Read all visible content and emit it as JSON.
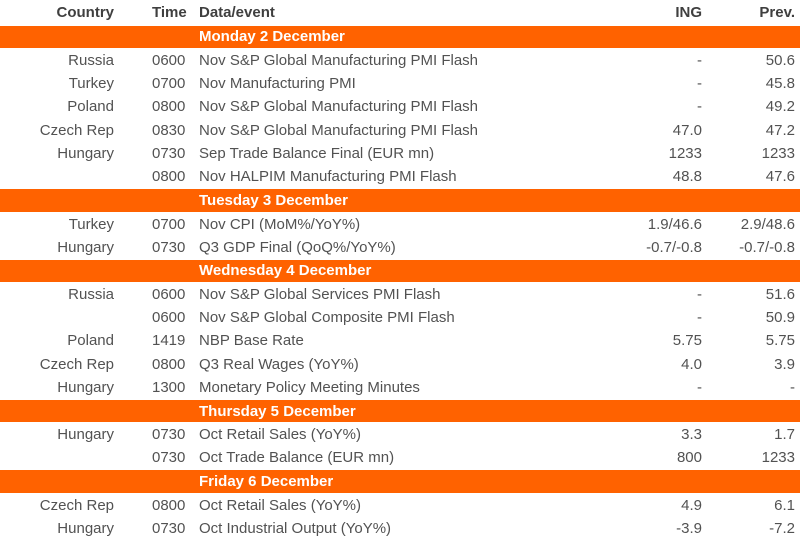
{
  "table": {
    "colors": {
      "accent_orange": "#FF6200",
      "header_text": "#3F3F3F",
      "body_text": "#525252",
      "section_text": "#FFFFFF"
    },
    "headers": {
      "country": "Country",
      "time": "Time",
      "event": "Data/event",
      "ing": "ING",
      "prev": "Prev."
    },
    "sections": [
      {
        "title": "Monday 2 December",
        "rows": [
          {
            "country": "Russia",
            "time": "0600",
            "event": "Nov S&P Global Manufacturing PMI Flash",
            "ing": "-",
            "prev": "50.6"
          },
          {
            "country": "Turkey",
            "time": "0700",
            "event": "Nov Manufacturing PMI",
            "ing": "-",
            "prev": "45.8"
          },
          {
            "country": "Poland",
            "time": "0800",
            "event": "Nov S&P Global Manufacturing PMI Flash",
            "ing": "-",
            "prev": "49.2"
          },
          {
            "country": "Czech Rep",
            "time": "0830",
            "event": "Nov S&P Global Manufacturing PMI Flash",
            "ing": "47.0",
            "prev": "47.2"
          },
          {
            "country": "Hungary",
            "time": "0730",
            "event": "Sep Trade Balance Final (EUR mn)",
            "ing": "1233",
            "prev": "1233"
          },
          {
            "country": "",
            "time": "0800",
            "event": "Nov HALPIM Manufacturing PMI Flash",
            "ing": "48.8",
            "prev": "47.6"
          }
        ]
      },
      {
        "title": "Tuesday 3 December",
        "rows": [
          {
            "country": "Turkey",
            "time": "0700",
            "event": "Nov CPI (MoM%/YoY%)",
            "ing": "1.9/46.6",
            "prev": "2.9/48.6"
          },
          {
            "country": "Hungary",
            "time": "0730",
            "event": "Q3 GDP Final (QoQ%/YoY%)",
            "ing": "-0.7/-0.8",
            "prev": "-0.7/-0.8"
          }
        ]
      },
      {
        "title": "Wednesday 4 December",
        "rows": [
          {
            "country": "Russia",
            "time": "0600",
            "event": "Nov S&P Global Services PMI Flash",
            "ing": "-",
            "prev": "51.6"
          },
          {
            "country": "",
            "time": "0600",
            "event": "Nov S&P Global Composite PMI Flash",
            "ing": "-",
            "prev": "50.9"
          },
          {
            "country": "Poland",
            "time": "1419",
            "event": "NBP Base Rate",
            "ing": "5.75",
            "prev": "5.75"
          },
          {
            "country": "Czech Rep",
            "time": "0800",
            "event": "Q3 Real Wages (YoY%)",
            "ing": "4.0",
            "prev": "3.9"
          },
          {
            "country": "Hungary",
            "time": "1300",
            "event": "Monetary Policy Meeting Minutes",
            "ing": "-",
            "prev": "-"
          }
        ]
      },
      {
        "title": "Thursday 5 December",
        "rows": [
          {
            "country": "Hungary",
            "time": "0730",
            "event": "Oct Retail Sales (YoY%)",
            "ing": "3.3",
            "prev": "1.7"
          },
          {
            "country": "",
            "time": "0730",
            "event": "Oct Trade Balance (EUR mn)",
            "ing": "800",
            "prev": "1233"
          }
        ]
      },
      {
        "title": "Friday 6 December",
        "rows": [
          {
            "country": "Czech Rep",
            "time": "0800",
            "event": "Oct Retail Sales (YoY%)",
            "ing": "4.9",
            "prev": "6.1"
          },
          {
            "country": "Hungary",
            "time": "0730",
            "event": "Oct Industrial Output (YoY%)",
            "ing": "-3.9",
            "prev": "-7.2"
          }
        ]
      }
    ]
  }
}
